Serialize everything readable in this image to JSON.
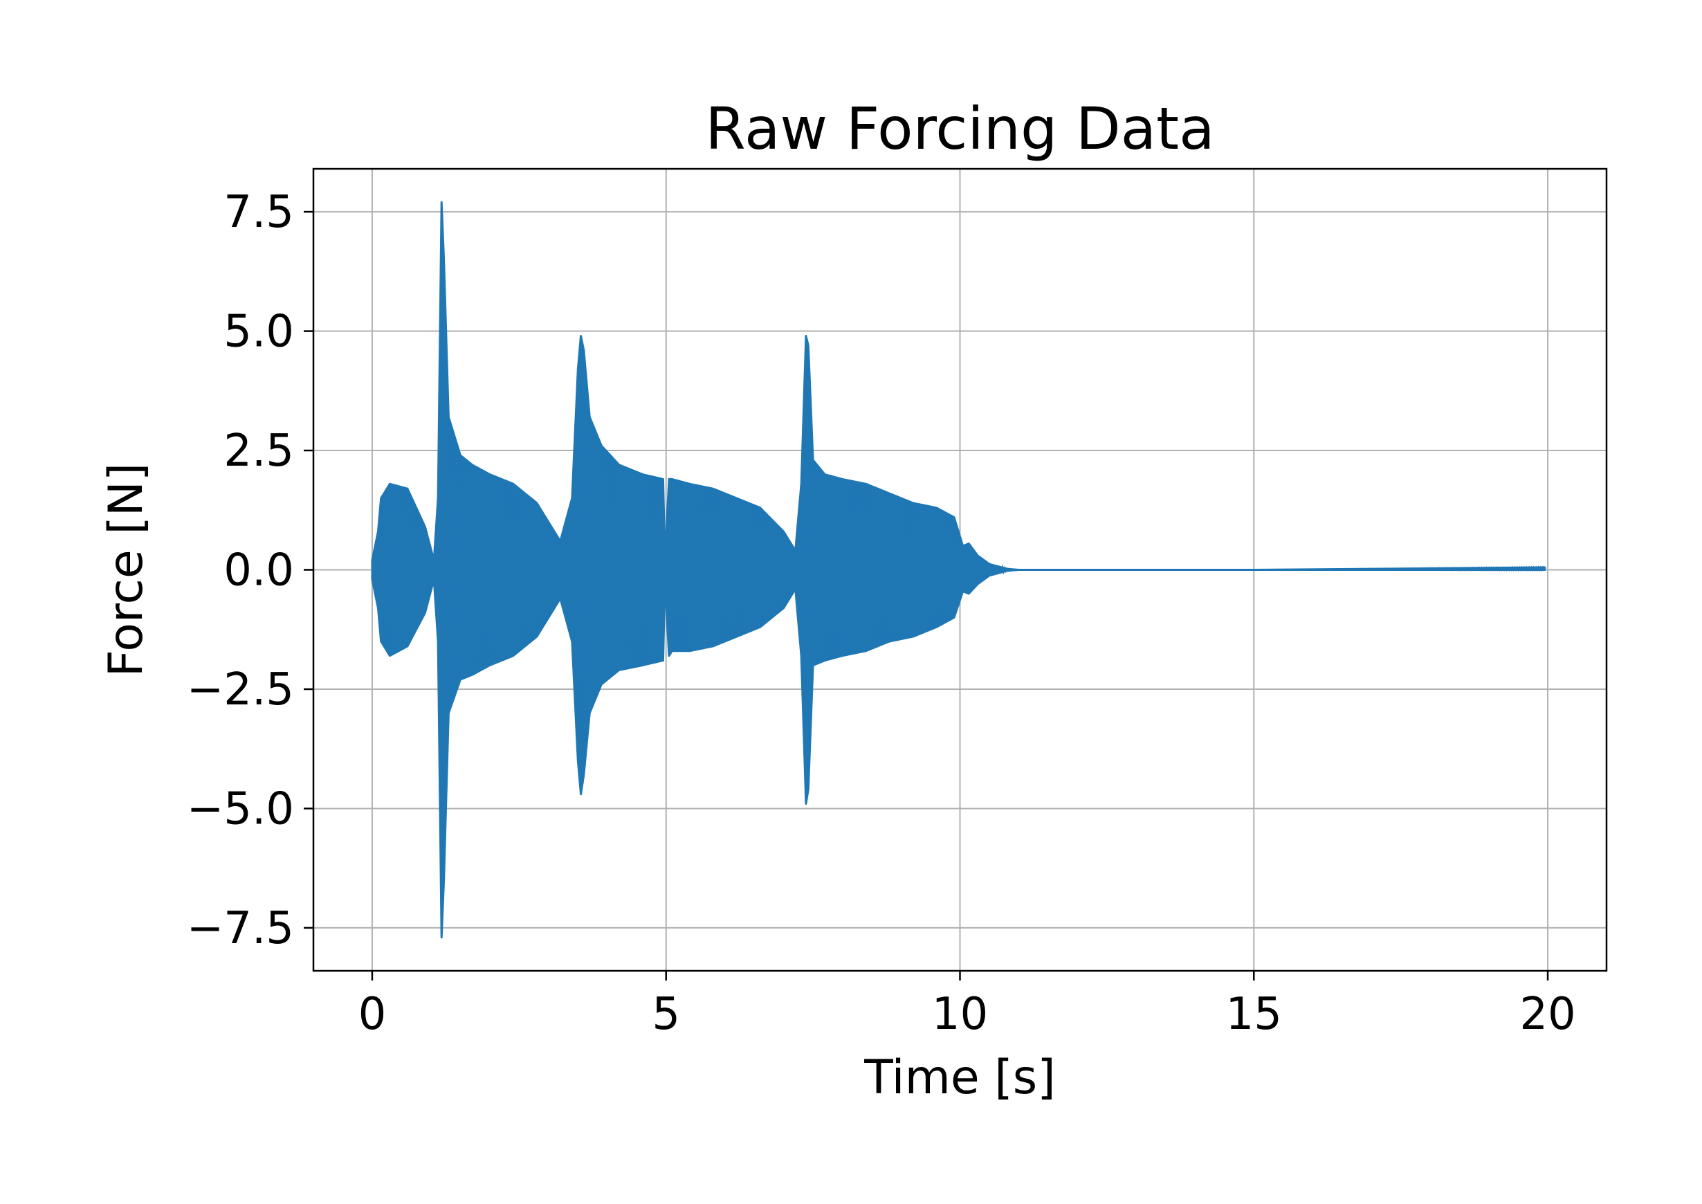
{
  "chart_data": {
    "type": "line",
    "title": "Raw Forcing Data",
    "xlabel": "Time [s]",
    "ylabel": "Force [N]",
    "xlim": [
      -1,
      21
    ],
    "ylim": [
      -8.4,
      8.4
    ],
    "xticks": [
      0,
      5,
      10,
      15,
      20
    ],
    "xtick_labels": [
      "0",
      "5",
      "10",
      "15",
      "20"
    ],
    "yticks": [
      7.5,
      5.0,
      2.5,
      0.0,
      -2.5,
      -5.0,
      -7.5
    ],
    "ytick_labels": [
      "7.5",
      "5.0",
      "2.5",
      "0.0",
      "−2.5",
      "−5.0",
      "−7.5"
    ],
    "grid": true,
    "series": [
      {
        "color": "#1f77b4",
        "description_points": "upper / lower envelope of the oscillating force signal",
        "x": [
          0.0,
          0.1,
          0.15,
          0.3,
          0.6,
          0.9,
          1.05,
          1.12,
          1.18,
          1.22,
          1.3,
          1.5,
          1.7,
          2.0,
          2.4,
          2.8,
          3.2,
          3.4,
          3.5,
          3.55,
          3.6,
          3.7,
          3.9,
          4.2,
          4.6,
          4.95,
          4.98,
          5.05,
          5.1,
          5.4,
          5.8,
          6.2,
          6.6,
          7.0,
          7.2,
          7.3,
          7.38,
          7.42,
          7.5,
          7.7,
          8.0,
          8.4,
          8.8,
          9.2,
          9.6,
          9.9,
          10.05,
          10.15,
          10.3,
          10.5,
          10.8,
          11.0,
          15.0,
          19.95
        ],
        "upper": [
          0.2,
          0.8,
          1.5,
          1.8,
          1.7,
          0.9,
          0.2,
          1.5,
          7.7,
          6.5,
          3.2,
          2.4,
          2.2,
          2.0,
          1.8,
          1.4,
          0.6,
          1.5,
          4.2,
          4.9,
          4.6,
          3.2,
          2.6,
          2.2,
          2.0,
          1.9,
          0.2,
          1.9,
          1.9,
          1.8,
          1.7,
          1.5,
          1.3,
          0.8,
          0.4,
          1.8,
          4.9,
          4.7,
          2.3,
          2.0,
          1.9,
          1.8,
          1.6,
          1.4,
          1.3,
          1.1,
          0.5,
          0.55,
          0.3,
          0.12,
          0.02,
          0.0,
          0.0,
          0.05
        ],
        "lower": [
          -0.2,
          -0.8,
          -1.5,
          -1.8,
          -1.6,
          -0.9,
          -0.2,
          -1.5,
          -7.7,
          -6.5,
          -3.0,
          -2.3,
          -2.2,
          -2.0,
          -1.8,
          -1.4,
          -0.6,
          -1.5,
          -4.0,
          -4.7,
          -4.3,
          -3.0,
          -2.4,
          -2.1,
          -2.0,
          -1.9,
          -0.2,
          -1.8,
          -1.7,
          -1.7,
          -1.6,
          -1.4,
          -1.2,
          -0.8,
          -0.4,
          -1.8,
          -4.9,
          -4.6,
          -2.0,
          -1.9,
          -1.8,
          -1.7,
          -1.5,
          -1.4,
          -1.2,
          -1.0,
          -0.45,
          -0.5,
          -0.3,
          -0.12,
          -0.02,
          0.0,
          0.0,
          0.0
        ]
      }
    ]
  }
}
